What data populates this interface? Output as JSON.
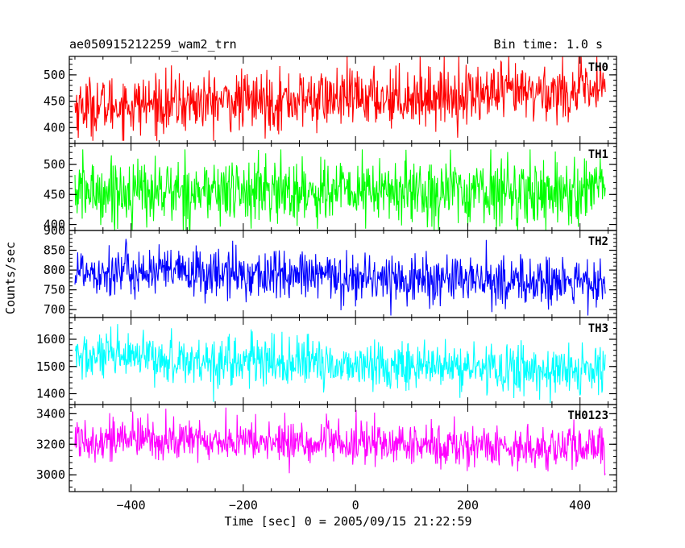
{
  "chart_data": {
    "type": "line",
    "title": "ae050915212259_wam2_trn",
    "subtitle": "Bin time: 1.0 s",
    "xlabel": "Time [sec] 0 = 2005/09/15 21:22:59",
    "ylabel": "Counts/sec",
    "x_range": [
      -500,
      445
    ],
    "xlim": [
      -510,
      465
    ],
    "x_ticks": [
      -400,
      -200,
      0,
      200,
      400
    ],
    "x_tick_labels": [
      "−400",
      "−200",
      "0",
      "200",
      "400"
    ],
    "bin_time_s": 1.0,
    "grid": false,
    "panels": [
      {
        "name": "TH0",
        "color": "#ff0000",
        "ylim": [
          370,
          535
        ],
        "y_ticks": [
          400,
          450,
          500
        ],
        "mean_start": 440,
        "mean_end": 470,
        "spread": 28,
        "min": 375,
        "max": 535
      },
      {
        "name": "TH1",
        "color": "#00ff00",
        "ylim": [
          390,
          535
        ],
        "y_ticks": [
          400,
          450,
          500
        ],
        "mean_start": 455,
        "mean_end": 455,
        "spread": 28,
        "min": 390,
        "max": 525
      },
      {
        "name": "TH2",
        "color": "#0000ff",
        "ylim": [
          680,
          900
        ],
        "y_ticks": [
          700,
          750,
          800,
          850,
          900
        ],
        "mean_start": 800,
        "mean_end": 765,
        "spread": 32,
        "min": 685,
        "max": 895
      },
      {
        "name": "TH3",
        "color": "#00ffff",
        "ylim": [
          1360,
          1680
        ],
        "y_ticks": [
          1400,
          1500,
          1600
        ],
        "mean_start": 1535,
        "mean_end": 1480,
        "spread": 45,
        "min": 1365,
        "max": 1675
      },
      {
        "name": "TH0123",
        "color": "#ff00ff",
        "ylim": [
          2890,
          3460
        ],
        "y_ticks": [
          3000,
          3200,
          3400
        ],
        "mean_start": 3240,
        "mean_end": 3170,
        "spread": 70,
        "min": 2900,
        "max": 3440
      }
    ]
  }
}
